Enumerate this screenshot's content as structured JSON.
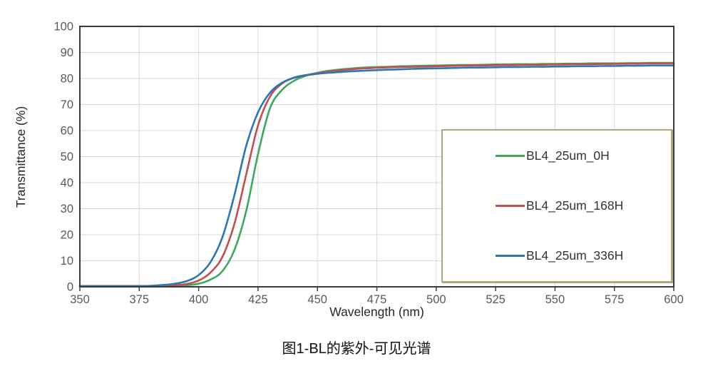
{
  "figure": {
    "caption": "图1-BL的紫外-可见光谱"
  },
  "style": {
    "grid_color": "#d9d9d9",
    "axis_color": "#3b3b3b",
    "tick_label_color": "#595959",
    "legend_border_color": "#b2a67c",
    "series_green": "#3ea95e",
    "series_red": "#c0504d",
    "series_blue": "#2e75b6"
  },
  "chart_data": {
    "type": "line",
    "title": "",
    "xlabel": "Wavelength (nm)",
    "ylabel": "Transmittance (%)",
    "xlim": [
      350,
      600
    ],
    "ylim": [
      0,
      100
    ],
    "x_ticks": [
      350,
      375,
      400,
      425,
      450,
      475,
      500,
      525,
      550,
      575,
      600
    ],
    "y_ticks": [
      0,
      10,
      20,
      30,
      40,
      50,
      60,
      70,
      80,
      90,
      100
    ],
    "grid": true,
    "legend_position": "inside-right",
    "x": [
      350,
      355,
      360,
      365,
      370,
      375,
      380,
      385,
      390,
      395,
      400,
      405,
      410,
      415,
      420,
      425,
      430,
      435,
      440,
      445,
      450,
      455,
      460,
      465,
      470,
      475,
      480,
      485,
      490,
      495,
      500,
      505,
      510,
      515,
      520,
      525,
      530,
      535,
      540,
      545,
      550,
      555,
      560,
      565,
      570,
      575,
      580,
      585,
      590,
      595,
      600
    ],
    "series": [
      {
        "name": "BL4_25um_0H",
        "color": "#3ea95e",
        "values": [
          0.3,
          0.3,
          0.3,
          0.3,
          0.3,
          0.3,
          0.3,
          0.3,
          0.4,
          0.6,
          1.2,
          2.8,
          6,
          14,
          29,
          51,
          68.5,
          75.5,
          79,
          81,
          82.2,
          83,
          83.5,
          83.9,
          84.2,
          84.4,
          84.5,
          84.7,
          84.8,
          84.9,
          85,
          85.1,
          85.2,
          85.2,
          85.3,
          85.4,
          85.4,
          85.5,
          85.5,
          85.6,
          85.6,
          85.7,
          85.7,
          85.8,
          85.8,
          85.8,
          85.9,
          85.9,
          86,
          86,
          86
        ]
      },
      {
        "name": "BL4_25um_168H",
        "color": "#c0504d",
        "values": [
          0.3,
          0.3,
          0.3,
          0.3,
          0.3,
          0.3,
          0.3,
          0.4,
          0.6,
          1.1,
          2.4,
          5.5,
          11.5,
          24,
          43,
          62,
          73,
          78,
          80.3,
          81.3,
          82,
          82.7,
          83.2,
          83.6,
          83.9,
          84.1,
          84.3,
          84.4,
          84.5,
          84.6,
          84.7,
          84.8,
          84.9,
          85,
          85,
          85.1,
          85.2,
          85.2,
          85.3,
          85.3,
          85.4,
          85.4,
          85.5,
          85.5,
          85.6,
          85.6,
          85.7,
          85.7,
          85.8,
          85.8,
          85.8
        ]
      },
      {
        "name": "BL4_25um_336H",
        "color": "#2e75b6",
        "values": [
          0.3,
          0.3,
          0.3,
          0.3,
          0.3,
          0.3,
          0.4,
          0.7,
          1.2,
          2.2,
          4.5,
          9.5,
          19,
          35,
          54,
          67,
          74.5,
          78.3,
          80.2,
          81.2,
          81.8,
          82.2,
          82.5,
          82.8,
          83,
          83.2,
          83.4,
          83.5,
          83.7,
          83.8,
          83.9,
          84,
          84.1,
          84.2,
          84.2,
          84.3,
          84.4,
          84.4,
          84.5,
          84.5,
          84.6,
          84.6,
          84.7,
          84.7,
          84.8,
          84.8,
          84.9,
          84.9,
          85,
          85,
          85
        ]
      }
    ]
  }
}
